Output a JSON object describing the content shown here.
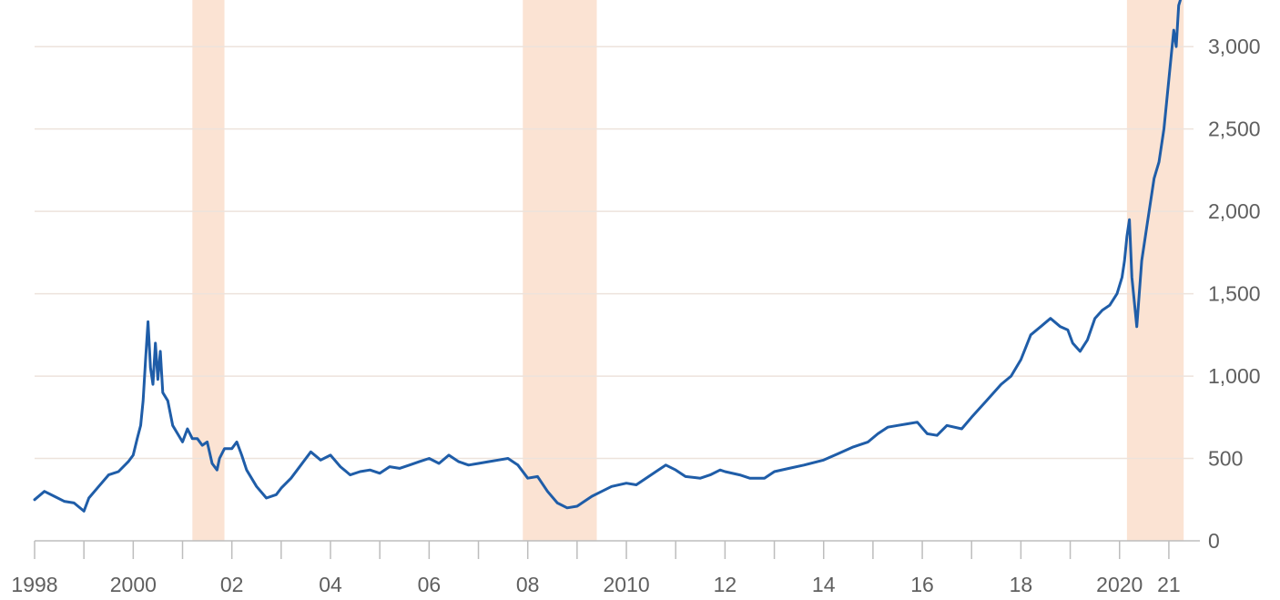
{
  "chart_data": {
    "type": "line",
    "title": "",
    "xlabel": "",
    "ylabel": "",
    "x_tick_labels": [
      {
        "label": "1998",
        "year": 1998
      },
      {
        "label": "2000",
        "year": 2000
      },
      {
        "label": "02",
        "year": 2002
      },
      {
        "label": "04",
        "year": 2004
      },
      {
        "label": "06",
        "year": 2006
      },
      {
        "label": "08",
        "year": 2008
      },
      {
        "label": "2010",
        "year": 2010
      },
      {
        "label": "12",
        "year": 2012
      },
      {
        "label": "14",
        "year": 2014
      },
      {
        "label": "16",
        "year": 2016
      },
      {
        "label": "18",
        "year": 2018
      },
      {
        "label": "2020",
        "year": 2020
      },
      {
        "label": "21",
        "year": 2021
      }
    ],
    "y_tick_labels": [
      "0",
      "500",
      "1,000",
      "1,500",
      "2,000",
      "2,500",
      "3,000"
    ],
    "y_ticks": [
      0,
      500,
      1000,
      1500,
      2000,
      2500,
      3000
    ],
    "xlim": [
      1998,
      2021.5
    ],
    "ylim": [
      0,
      3200
    ],
    "grid": "horizontal",
    "y_axis_side": "right",
    "shaded_periods": [
      {
        "start": 2001.2,
        "end": 2001.85
      },
      {
        "start": 2007.9,
        "end": 2009.4
      },
      {
        "start": 2020.15,
        "end": 2021.3
      }
    ],
    "series": [
      {
        "x": [
          1998.0,
          1998.2,
          1998.4,
          1998.6,
          1998.8,
          1999.0,
          1999.1,
          1999.3,
          1999.5,
          1999.7,
          1999.9,
          2000.0,
          2000.08,
          2000.15,
          2000.2,
          2000.25,
          2000.3,
          2000.35,
          2000.4,
          2000.45,
          2000.5,
          2000.55,
          2000.6,
          2000.7,
          2000.8,
          2000.9,
          2001.0,
          2001.1,
          2001.2,
          2001.3,
          2001.4,
          2001.5,
          2001.6,
          2001.7,
          2001.75,
          2001.85,
          2002.0,
          2002.1,
          2002.2,
          2002.3,
          2002.5,
          2002.7,
          2002.9,
          2003.0,
          2003.2,
          2003.4,
          2003.6,
          2003.8,
          2004.0,
          2004.2,
          2004.4,
          2004.6,
          2004.8,
          2005.0,
          2005.2,
          2005.4,
          2005.6,
          2005.8,
          2006.0,
          2006.2,
          2006.4,
          2006.6,
          2006.8,
          2007.0,
          2007.2,
          2007.4,
          2007.6,
          2007.8,
          2008.0,
          2008.2,
          2008.4,
          2008.6,
          2008.8,
          2009.0,
          2009.1,
          2009.3,
          2009.5,
          2009.7,
          2010.0,
          2010.2,
          2010.4,
          2010.6,
          2010.8,
          2011.0,
          2011.2,
          2011.5,
          2011.7,
          2011.9,
          2012.0,
          2012.3,
          2012.5,
          2012.8,
          2013.0,
          2013.3,
          2013.6,
          2014.0,
          2014.3,
          2014.6,
          2014.9,
          2015.1,
          2015.3,
          2015.5,
          2015.7,
          2015.9,
          2016.1,
          2016.3,
          2016.5,
          2016.8,
          2017.0,
          2017.3,
          2017.6,
          2017.8,
          2018.0,
          2018.2,
          2018.4,
          2018.6,
          2018.8,
          2018.95,
          2019.05,
          2019.2,
          2019.35,
          2019.5,
          2019.65,
          2019.8,
          2019.95,
          2020.05,
          2020.1,
          2020.15,
          2020.2,
          2020.25,
          2020.35,
          2020.45,
          2020.55,
          2020.7,
          2020.8,
          2020.9,
          2021.0,
          2021.05,
          2021.1,
          2021.15,
          2021.2,
          2021.25
        ],
        "values": [
          250,
          300,
          270,
          240,
          230,
          180,
          260,
          330,
          400,
          420,
          480,
          520,
          620,
          700,
          850,
          1100,
          1330,
          1050,
          950,
          1200,
          980,
          1150,
          900,
          850,
          700,
          650,
          600,
          680,
          620,
          620,
          580,
          600,
          470,
          430,
          500,
          560,
          560,
          600,
          520,
          430,
          330,
          260,
          280,
          320,
          380,
          460,
          540,
          490,
          520,
          450,
          400,
          420,
          430,
          410,
          450,
          440,
          460,
          480,
          500,
          470,
          520,
          480,
          460,
          470,
          480,
          490,
          500,
          460,
          380,
          390,
          300,
          230,
          200,
          210,
          230,
          270,
          300,
          330,
          350,
          340,
          380,
          420,
          460,
          430,
          390,
          380,
          400,
          430,
          420,
          400,
          380,
          380,
          420,
          440,
          460,
          490,
          530,
          570,
          600,
          650,
          690,
          700,
          710,
          720,
          650,
          640,
          700,
          680,
          750,
          850,
          950,
          1000,
          1100,
          1250,
          1300,
          1350,
          1300,
          1280,
          1200,
          1150,
          1220,
          1350,
          1400,
          1430,
          1500,
          1600,
          1700,
          1850,
          1950,
          1600,
          1300,
          1700,
          1900,
          2200,
          2300,
          2500,
          2800,
          2950,
          3100,
          3000,
          3250,
          3300
        ]
      }
    ],
    "colors": {
      "line": "#1f5da8",
      "shade": "#fbe3d3",
      "grid": "#ede3dc",
      "axis": "#bdbdbd",
      "text": "#5f5f5f"
    }
  }
}
